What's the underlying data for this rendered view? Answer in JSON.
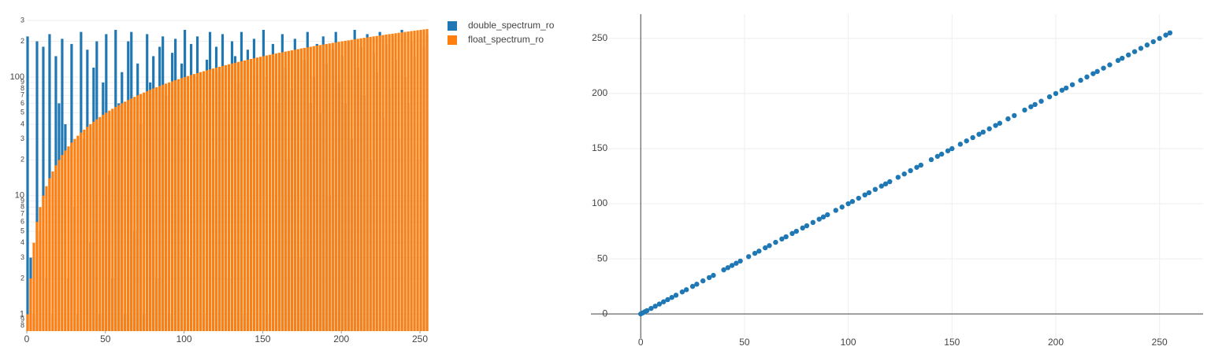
{
  "chart_data": [
    {
      "type": "bar",
      "log_y": true,
      "grid": true,
      "legend": "right",
      "x": [
        0,
        2,
        4,
        6,
        8,
        10,
        12,
        14,
        16,
        18,
        20,
        22,
        24,
        26,
        28,
        30,
        32,
        34,
        36,
        38,
        40,
        42,
        44,
        46,
        48,
        50,
        52,
        54,
        56,
        58,
        60,
        62,
        64,
        66,
        68,
        70,
        72,
        74,
        76,
        78,
        80,
        82,
        84,
        86,
        88,
        90,
        92,
        94,
        96,
        98,
        100,
        102,
        104,
        106,
        108,
        110,
        112,
        114,
        116,
        118,
        120,
        122,
        124,
        126,
        128,
        130,
        132,
        134,
        136,
        138,
        140,
        142,
        144,
        146,
        148,
        150,
        152,
        154,
        156,
        158,
        160,
        162,
        164,
        166,
        168,
        170,
        172,
        174,
        176,
        178,
        180,
        182,
        184,
        186,
        188,
        190,
        192,
        194,
        196,
        198,
        200,
        202,
        204,
        206,
        208,
        210,
        212,
        214,
        216,
        218,
        220,
        222,
        224,
        226,
        228,
        230,
        232,
        234,
        236,
        238,
        240,
        242,
        244,
        246,
        248,
        250,
        252,
        254
      ],
      "series": [
        {
          "name": "double_spectrum_ro",
          "color": "#1f77b4",
          "values": [
            220,
            3,
            1,
            200,
            5,
            180,
            2,
            230,
            1,
            150,
            60,
            210,
            40,
            2,
            190,
            8,
            1,
            240,
            30,
            170,
            4,
            120,
            200,
            1,
            90,
            230,
            15,
            2,
            250,
            60,
            110,
            1,
            200,
            240,
            5,
            130,
            40,
            1,
            230,
            90,
            150,
            2,
            180,
            220,
            70,
            1,
            160,
            210,
            40,
            130,
            250,
            3,
            190,
            100,
            220,
            60,
            1,
            140,
            240,
            20,
            180,
            110,
            230,
            50,
            2,
            200,
            150,
            90,
            240,
            1,
            170,
            70,
            210,
            130,
            40,
            250,
            100,
            1,
            190,
            150,
            60,
            230,
            120,
            20,
            80,
            210,
            170,
            3,
            140,
            240,
            60,
            100,
            190,
            50,
            220,
            130,
            10,
            170,
            240,
            90,
            150,
            60,
            200,
            30,
            250,
            120,
            180,
            70,
            230,
            20,
            160,
            110,
            240,
            45,
            190,
            80,
            220,
            140,
            30,
            250,
            100,
            60,
            200,
            150,
            20,
            240,
            180,
            230
          ]
        },
        {
          "name": "float_spectrum_ro",
          "color": "#ff7f0e",
          "values": [
            1,
            2,
            4,
            6,
            8,
            10,
            12,
            14,
            16,
            18,
            20,
            22,
            24,
            26,
            28,
            30,
            32,
            34,
            36,
            38,
            40,
            42,
            44,
            46,
            48,
            50,
            52,
            54,
            56,
            58,
            60,
            62,
            64,
            66,
            68,
            70,
            72,
            74,
            76,
            78,
            80,
            82,
            84,
            86,
            88,
            90,
            92,
            94,
            96,
            98,
            100,
            102,
            104,
            106,
            108,
            110,
            112,
            114,
            116,
            118,
            120,
            122,
            124,
            126,
            128,
            130,
            132,
            134,
            136,
            138,
            140,
            142,
            144,
            146,
            148,
            150,
            152,
            154,
            156,
            158,
            160,
            162,
            164,
            166,
            168,
            170,
            172,
            174,
            176,
            178,
            180,
            182,
            184,
            186,
            188,
            190,
            192,
            194,
            196,
            198,
            200,
            202,
            204,
            206,
            208,
            210,
            212,
            214,
            216,
            218,
            220,
            222,
            224,
            226,
            228,
            230,
            232,
            234,
            236,
            238,
            240,
            242,
            244,
            246,
            248,
            250,
            252,
            254
          ]
        }
      ],
      "xlim": [
        0,
        255
      ],
      "xticks": [
        0,
        50,
        100,
        150,
        200,
        250
      ],
      "ylim": [
        0.72,
        300
      ],
      "yticks": [
        {
          "value": 0.8,
          "label": "8"
        },
        {
          "value": 0.9,
          "label": "9"
        },
        1,
        2,
        3,
        4,
        5,
        6,
        7,
        8,
        9,
        10,
        {
          "value": 20,
          "label": "2"
        },
        {
          "value": 30,
          "label": "3"
        },
        {
          "value": 40,
          "label": "4"
        },
        {
          "value": 50,
          "label": "5"
        },
        {
          "value": 60,
          "label": "6"
        },
        {
          "value": 70,
          "label": "7"
        },
        {
          "value": 80,
          "label": "8"
        },
        {
          "value": 90,
          "label": "9"
        },
        100,
        {
          "value": 200,
          "label": "2"
        },
        {
          "value": 300,
          "label": "3"
        }
      ]
    },
    {
      "type": "scatter",
      "grid": true,
      "color": "#1f77b4",
      "x": [
        0,
        1,
        2,
        3,
        5,
        7,
        9,
        11,
        13,
        15,
        17,
        20,
        22,
        25,
        27,
        30,
        33,
        35,
        40,
        42,
        44,
        46,
        48,
        52,
        55,
        57,
        60,
        62,
        65,
        68,
        70,
        73,
        75,
        78,
        80,
        83,
        86,
        88,
        90,
        94,
        97,
        100,
        102,
        105,
        108,
        110,
        113,
        116,
        118,
        120,
        124,
        127,
        130,
        133,
        135,
        140,
        143,
        145,
        148,
        150,
        154,
        157,
        160,
        163,
        165,
        168,
        171,
        173,
        177,
        180,
        185,
        188,
        190,
        193,
        197,
        200,
        203,
        205,
        208,
        212,
        215,
        218,
        220,
        223,
        226,
        230,
        232,
        235,
        238,
        241,
        244,
        247,
        250,
        253,
        255
      ],
      "values": [
        0,
        1,
        2,
        3,
        5,
        7,
        9,
        11,
        13,
        15,
        17,
        20,
        22,
        25,
        27,
        30,
        33,
        35,
        40,
        42,
        44,
        46,
        48,
        52,
        55,
        57,
        60,
        62,
        65,
        68,
        70,
        73,
        75,
        78,
        80,
        83,
        86,
        88,
        90,
        94,
        97,
        100,
        102,
        105,
        108,
        110,
        113,
        116,
        118,
        120,
        124,
        127,
        130,
        133,
        135,
        140,
        143,
        145,
        148,
        150,
        154,
        157,
        160,
        163,
        165,
        168,
        171,
        173,
        177,
        180,
        185,
        188,
        190,
        193,
        197,
        200,
        203,
        205,
        208,
        212,
        215,
        218,
        220,
        223,
        226,
        230,
        232,
        235,
        238,
        241,
        244,
        247,
        250,
        253,
        255
      ],
      "xlim": [
        -24,
        271
      ],
      "xticks": [
        0,
        50,
        100,
        150,
        200,
        250
      ],
      "ylim": [
        -22,
        272
      ],
      "yticks": [
        0,
        50,
        100,
        150,
        200,
        250
      ]
    }
  ]
}
